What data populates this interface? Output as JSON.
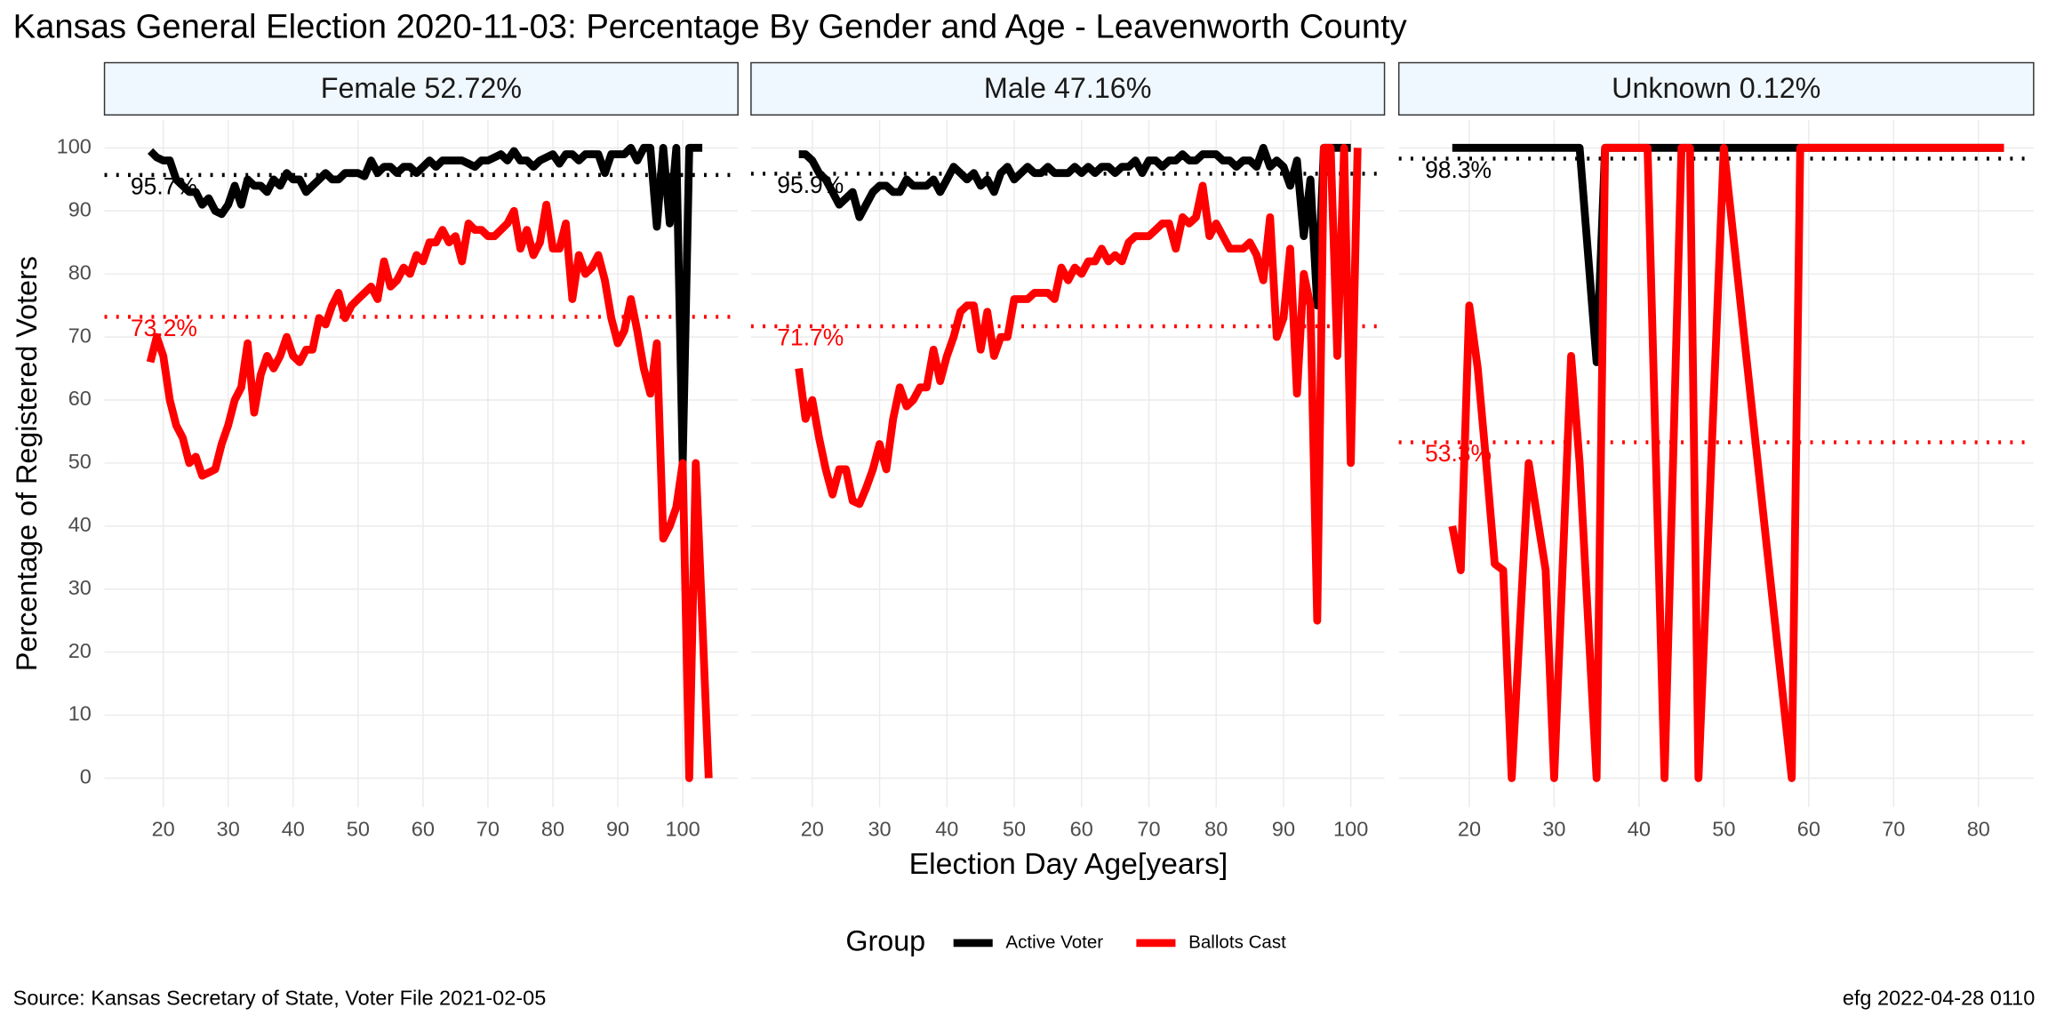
{
  "title": "Kansas General Election 2020-11-03:  Percentage By Gender and Age - Leavenworth County",
  "y_label": "Percentage of Registered Voters",
  "x_label": "Election Day Age[years]",
  "legend_title": "Group",
  "source": "Source:  Kansas Secretary of State, Voter File  2021-02-05",
  "credit": "efg 2022-04-28 0110",
  "chart_data": [
    {
      "type": "line",
      "facet": "Female 52.72%",
      "grid": true,
      "xlim": [
        10.95,
        108.5
      ],
      "xticks": [
        20,
        30,
        40,
        50,
        60,
        70,
        80,
        90,
        100
      ],
      "ylim": [
        -4.6,
        104.4
      ],
      "yticks": [
        0,
        10,
        20,
        30,
        40,
        50,
        60,
        70,
        80,
        90,
        100
      ],
      "hlines": [
        {
          "value": 95.7,
          "label": "95.7%",
          "color": "#000000"
        },
        {
          "value": 73.2,
          "label": "73.2%",
          "color": "#ff0000"
        }
      ],
      "series": [
        {
          "name": "Active Voter",
          "color": "#000000",
          "x": [
            18,
            19,
            20,
            21,
            22,
            23,
            24,
            25,
            26,
            27,
            28,
            29,
            30,
            31,
            32,
            33,
            34,
            35,
            36,
            37,
            38,
            39,
            40,
            41,
            42,
            43,
            44,
            45,
            46,
            47,
            48,
            49,
            50,
            51,
            52,
            53,
            54,
            55,
            56,
            57,
            58,
            59,
            60,
            61,
            62,
            63,
            64,
            65,
            66,
            67,
            68,
            69,
            70,
            71,
            72,
            73,
            74,
            75,
            76,
            77,
            78,
            79,
            80,
            81,
            82,
            83,
            84,
            85,
            86,
            87,
            88,
            89,
            90,
            91,
            92,
            93,
            94,
            95,
            96,
            97,
            98,
            99,
            100,
            101,
            102,
            103
          ],
          "values": [
            99.5,
            98.5,
            98,
            98,
            95,
            94,
            93,
            93,
            91,
            92,
            90,
            89.5,
            91,
            94,
            91,
            95,
            94,
            94,
            93,
            95,
            94,
            96,
            95,
            95,
            93,
            94,
            95,
            96,
            95,
            95,
            96,
            96,
            96,
            95.5,
            98,
            96,
            97,
            97,
            96,
            97,
            97,
            96,
            97,
            98,
            97,
            98,
            98,
            98,
            98,
            97.5,
            97,
            98,
            98,
            98.5,
            99,
            98,
            99.5,
            98,
            98,
            97,
            98,
            98.5,
            99,
            97.5,
            99,
            99,
            98,
            99,
            99,
            99,
            96,
            99,
            99,
            99,
            100,
            98,
            100,
            100,
            87.5,
            100,
            88,
            100,
            50,
            100,
            100,
            100
          ]
        },
        {
          "name": "Ballots Cast",
          "color": "#ff0000",
          "x": [
            18,
            19,
            20,
            21,
            22,
            23,
            24,
            25,
            26,
            27,
            28,
            29,
            30,
            31,
            32,
            33,
            34,
            35,
            36,
            37,
            38,
            39,
            40,
            41,
            42,
            43,
            44,
            45,
            46,
            47,
            48,
            49,
            50,
            51,
            52,
            53,
            54,
            55,
            56,
            57,
            58,
            59,
            60,
            61,
            62,
            63,
            64,
            65,
            66,
            67,
            68,
            69,
            70,
            71,
            72,
            73,
            74,
            75,
            76,
            77,
            78,
            79,
            80,
            81,
            82,
            83,
            84,
            85,
            86,
            87,
            88,
            89,
            90,
            91,
            92,
            93,
            94,
            95,
            96,
            97,
            98,
            99,
            100,
            101,
            102,
            103,
            104
          ],
          "values": [
            66,
            70,
            67,
            60,
            56,
            54,
            50,
            51,
            48,
            48.5,
            49,
            53,
            56,
            60,
            62,
            69,
            58,
            64,
            67,
            65,
            67,
            70,
            67,
            66,
            68,
            68,
            73,
            72,
            75,
            77,
            73,
            75,
            76,
            77,
            78,
            76,
            82,
            78,
            79,
            81,
            80,
            83,
            82,
            85,
            85,
            87,
            85,
            86,
            82,
            88,
            87,
            87,
            86,
            86,
            87,
            88,
            90,
            84,
            87,
            83,
            85,
            91,
            84,
            84,
            88,
            76,
            83,
            80,
            81,
            83,
            79,
            73,
            69,
            71,
            76,
            71,
            65,
            61,
            69,
            38,
            40,
            43,
            50,
            0,
            50,
            25,
            0
          ]
        }
      ]
    },
    {
      "type": "line",
      "facet": "Male 47.16%",
      "grid": true,
      "xlim": [
        10.9,
        105.0
      ],
      "xticks": [
        20,
        30,
        40,
        50,
        60,
        70,
        80,
        90,
        100
      ],
      "ylim": [
        -4.6,
        104.4
      ],
      "yticks": [
        0,
        10,
        20,
        30,
        40,
        50,
        60,
        70,
        80,
        90,
        100
      ],
      "hlines": [
        {
          "value": 95.9,
          "label": "95.9%",
          "color": "#000000"
        },
        {
          "value": 71.7,
          "label": "71.7%",
          "color": "#ff0000"
        }
      ],
      "series": [
        {
          "name": "Active Voter",
          "color": "#000000",
          "x": [
            18,
            19,
            20,
            21,
            22,
            23,
            24,
            25,
            26,
            27,
            28,
            29,
            30,
            31,
            32,
            33,
            34,
            35,
            36,
            37,
            38,
            39,
            40,
            41,
            42,
            43,
            44,
            45,
            46,
            47,
            48,
            49,
            50,
            51,
            52,
            53,
            54,
            55,
            56,
            57,
            58,
            59,
            60,
            61,
            62,
            63,
            64,
            65,
            66,
            67,
            68,
            69,
            70,
            71,
            72,
            73,
            74,
            75,
            76,
            77,
            78,
            79,
            80,
            81,
            82,
            83,
            84,
            85,
            86,
            87,
            88,
            89,
            90,
            91,
            92,
            93,
            94,
            95,
            96,
            97,
            98,
            99,
            100
          ],
          "values": [
            99,
            99,
            98,
            96,
            95,
            93,
            91,
            92,
            93,
            89,
            91,
            93,
            94,
            94,
            93,
            93,
            95,
            94,
            94,
            94,
            95,
            93,
            95,
            97,
            96,
            95,
            96,
            94,
            95,
            93,
            96,
            97,
            95,
            96,
            97,
            96,
            96,
            97,
            96,
            96,
            96,
            97,
            96,
            97,
            96,
            97,
            97,
            96,
            97,
            97,
            98,
            96,
            98,
            98,
            97,
            98,
            98,
            99,
            98,
            98,
            99,
            99,
            99,
            98,
            98,
            97,
            98,
            98,
            97,
            100,
            97,
            98,
            97,
            94,
            98,
            86,
            95,
            75,
            100,
            100,
            100,
            100,
            100
          ]
        },
        {
          "name": "Ballots Cast",
          "color": "#ff0000",
          "x": [
            18,
            19,
            20,
            21,
            22,
            23,
            24,
            25,
            26,
            27,
            28,
            29,
            30,
            31,
            32,
            33,
            34,
            35,
            36,
            37,
            38,
            39,
            40,
            41,
            42,
            43,
            44,
            45,
            46,
            47,
            48,
            49,
            50,
            51,
            52,
            53,
            54,
            55,
            56,
            57,
            58,
            59,
            60,
            61,
            62,
            63,
            64,
            65,
            66,
            67,
            68,
            69,
            70,
            71,
            72,
            73,
            74,
            75,
            76,
            77,
            78,
            79,
            80,
            81,
            82,
            83,
            84,
            85,
            86,
            87,
            88,
            89,
            90,
            91,
            92,
            93,
            94,
            95,
            96,
            97,
            98,
            99,
            100,
            101
          ],
          "values": [
            65,
            57,
            60,
            54,
            49,
            45,
            49,
            49,
            44,
            43.5,
            46,
            49,
            53,
            49,
            57,
            62,
            59,
            60,
            62,
            62,
            68,
            63,
            67,
            70,
            74,
            75,
            75,
            68,
            74,
            67,
            70,
            70,
            76,
            76,
            76,
            77,
            77,
            77,
            76,
            81,
            79,
            81,
            80,
            82,
            82,
            84,
            82,
            83,
            82,
            85,
            86,
            86,
            86,
            87,
            88,
            88,
            84,
            89,
            88,
            89,
            94,
            86,
            88,
            86,
            84,
            84,
            84,
            85,
            83,
            79,
            89,
            70,
            73,
            84,
            61,
            80,
            75,
            25,
            100,
            100,
            67,
            100,
            50,
            100
          ]
        }
      ]
    },
    {
      "type": "line",
      "facet": "Unknown 0.12%",
      "grid": true,
      "xlim": [
        11.7,
        86.5
      ],
      "xticks": [
        20,
        30,
        40,
        50,
        60,
        70,
        80
      ],
      "ylim": [
        -4.6,
        104.4
      ],
      "yticks": [
        0,
        10,
        20,
        30,
        40,
        50,
        60,
        70,
        80,
        90,
        100
      ],
      "hlines": [
        {
          "value": 98.3,
          "label": "98.3%",
          "color": "#000000"
        },
        {
          "value": 53.3,
          "label": "53.3%",
          "color": "#ff0000"
        }
      ],
      "series": [
        {
          "name": "Active Voter",
          "color": "#000000",
          "x": [
            18,
            33,
            35,
            36,
            83
          ],
          "values": [
            100,
            100,
            66,
            100,
            100
          ]
        },
        {
          "name": "Ballots Cast",
          "color": "#ff0000",
          "x": [
            18,
            19,
            20,
            21,
            22,
            23,
            24,
            25,
            27,
            29,
            30,
            32,
            33,
            35,
            36,
            41,
            43,
            45,
            46,
            47,
            50,
            58,
            59,
            83
          ],
          "values": [
            40,
            33,
            75,
            65,
            50,
            34,
            33,
            0,
            50,
            33,
            0,
            67,
            50,
            0,
            100,
            100,
            0,
            100,
            100,
            0,
            100,
            0,
            100,
            100
          ]
        }
      ]
    }
  ]
}
